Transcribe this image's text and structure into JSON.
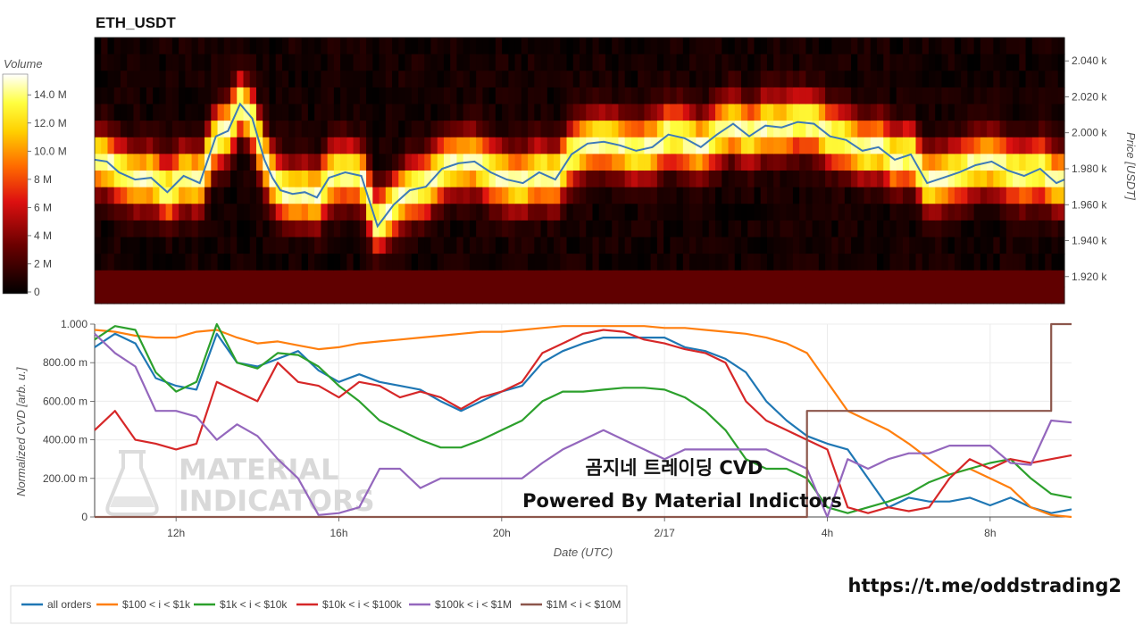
{
  "symbol": "ETH_USDT",
  "overlay_line1": "곰지네 트레이딩 CVD",
  "overlay_line2": "Powered By Material Indictors",
  "url": "https://t.me/oddstrading2",
  "watermark_line1": "MATERIAL",
  "watermark_line2": "INDICATORS",
  "colors": {
    "heat_low": "#000000",
    "heat_mid": "#cc0000",
    "heat_high": "#ffff40",
    "heat_max": "#ffffff",
    "price_line": "#3d7ab8"
  },
  "chart_data": [
    {
      "type": "heatmap",
      "title": "ETH_USDT",
      "colorbar": {
        "title": "Volume",
        "ticks": [
          "0",
          "2 M",
          "4 M",
          "6 M",
          "8 M",
          "10.0 M",
          "12.0 M",
          "14.0 M"
        ],
        "range": [
          0,
          15.6
        ]
      },
      "ylabel": "Price [USDT]",
      "yticks": [
        "1.920 k",
        "1.940 k",
        "1.960 k",
        "1.980 k",
        "2.000 k",
        "2.020 k",
        "2.040 k"
      ],
      "ylim": [
        1905,
        2053
      ],
      "xlim": [
        0,
        24
      ],
      "price_series": {
        "x": [
          0,
          0.3,
          0.6,
          1,
          1.4,
          1.8,
          2.2,
          2.6,
          3,
          3.3,
          3.6,
          3.9,
          4.2,
          4.4,
          4.6,
          4.9,
          5.2,
          5.5,
          5.8,
          6.2,
          6.6,
          7,
          7.4,
          7.8,
          8.2,
          8.6,
          9,
          9.4,
          9.8,
          10.2,
          10.6,
          11,
          11.4,
          11.8,
          12.2,
          12.6,
          13,
          13.4,
          13.8,
          14.2,
          14.6,
          15,
          15.4,
          15.8,
          16.2,
          16.6,
          17,
          17.4,
          17.8,
          18.2,
          18.6,
          19,
          19.4,
          19.8,
          20.2,
          20.6,
          21,
          21.4,
          21.8,
          22.2,
          22.6,
          23,
          23.4,
          23.8,
          24
        ],
        "y": [
          1985,
          1984,
          1978,
          1974,
          1975,
          1967,
          1976,
          1972,
          1998,
          2001,
          2016,
          2008,
          1985,
          1975,
          1968,
          1966,
          1967,
          1964,
          1975,
          1978,
          1976,
          1948,
          1960,
          1968,
          1970,
          1980,
          1983,
          1984,
          1978,
          1974,
          1972,
          1978,
          1974,
          1988,
          1994,
          1995,
          1993,
          1990,
          1992,
          1999,
          1997,
          1992,
          1999,
          2005,
          1998,
          2004,
          2003,
          2006,
          2005,
          1998,
          1996,
          1990,
          1992,
          1985,
          1988,
          1972,
          1975,
          1978,
          1982,
          1984,
          1979,
          1976,
          1980,
          1972,
          1974
        ]
      }
    },
    {
      "type": "line",
      "xlabel": "Date (UTC)",
      "ylabel": "Normalized CVD [arb. u.]",
      "xticks": [
        "12h",
        "16h",
        "20h",
        "2/17",
        "4h",
        "8h"
      ],
      "yticks": [
        "0",
        "200.00 m",
        "400.00 m",
        "600.00 m",
        "800.00 m",
        "1.000"
      ],
      "ylim": [
        0,
        1
      ],
      "xlim": [
        0,
        24
      ],
      "x": [
        0,
        0.5,
        1,
        1.5,
        2,
        2.5,
        3,
        3.5,
        4,
        4.5,
        5,
        5.5,
        6,
        6.5,
        7,
        7.5,
        8,
        8.5,
        9,
        9.5,
        10,
        10.5,
        11,
        11.5,
        12,
        12.5,
        13,
        13.5,
        14,
        14.5,
        15,
        15.5,
        16,
        16.5,
        17,
        17.5,
        18,
        18.5,
        19,
        19.5,
        20,
        20.5,
        21,
        21.5,
        22,
        22.5,
        23,
        23.5,
        24
      ],
      "series": [
        {
          "name": "all orders",
          "color": "#1f77b4",
          "values": [
            0.88,
            0.95,
            0.9,
            0.72,
            0.68,
            0.66,
            0.95,
            0.8,
            0.78,
            0.82,
            0.86,
            0.76,
            0.7,
            0.74,
            0.7,
            0.68,
            0.66,
            0.6,
            0.55,
            0.6,
            0.65,
            0.68,
            0.8,
            0.86,
            0.9,
            0.93,
            0.93,
            0.93,
            0.93,
            0.88,
            0.86,
            0.82,
            0.75,
            0.6,
            0.5,
            0.42,
            0.38,
            0.35,
            0.2,
            0.05,
            0.1,
            0.08,
            0.08,
            0.1,
            0.06,
            0.1,
            0.05,
            0.02,
            0.04
          ]
        },
        {
          "name": "$100 < i < $1k",
          "color": "#ff7f0e",
          "values": [
            0.97,
            0.96,
            0.94,
            0.93,
            0.93,
            0.96,
            0.97,
            0.93,
            0.9,
            0.91,
            0.89,
            0.87,
            0.88,
            0.9,
            0.91,
            0.92,
            0.93,
            0.94,
            0.95,
            0.96,
            0.96,
            0.97,
            0.98,
            0.99,
            0.99,
            0.99,
            0.99,
            0.99,
            0.98,
            0.98,
            0.97,
            0.96,
            0.95,
            0.93,
            0.9,
            0.85,
            0.7,
            0.55,
            0.5,
            0.45,
            0.38,
            0.3,
            0.22,
            0.25,
            0.2,
            0.15,
            0.05,
            0.01,
            0.0
          ]
        },
        {
          "name": "$1k < i < $10k",
          "color": "#2ca02c",
          "values": [
            0.92,
            0.99,
            0.97,
            0.75,
            0.65,
            0.7,
            1.0,
            0.8,
            0.77,
            0.85,
            0.84,
            0.78,
            0.68,
            0.6,
            0.5,
            0.45,
            0.4,
            0.36,
            0.36,
            0.4,
            0.45,
            0.5,
            0.6,
            0.65,
            0.65,
            0.66,
            0.67,
            0.67,
            0.66,
            0.62,
            0.55,
            0.45,
            0.3,
            0.25,
            0.25,
            0.2,
            0.05,
            0.02,
            0.05,
            0.08,
            0.12,
            0.18,
            0.22,
            0.25,
            0.28,
            0.3,
            0.2,
            0.12,
            0.1
          ]
        },
        {
          "name": "$10k < i < $100k",
          "color": "#d62728",
          "values": [
            0.45,
            0.55,
            0.4,
            0.38,
            0.35,
            0.38,
            0.7,
            0.65,
            0.6,
            0.8,
            0.7,
            0.68,
            0.62,
            0.7,
            0.68,
            0.62,
            0.65,
            0.62,
            0.56,
            0.62,
            0.65,
            0.7,
            0.85,
            0.9,
            0.95,
            0.97,
            0.96,
            0.92,
            0.9,
            0.87,
            0.85,
            0.8,
            0.6,
            0.5,
            0.45,
            0.4,
            0.35,
            0.05,
            0.02,
            0.05,
            0.03,
            0.05,
            0.2,
            0.3,
            0.25,
            0.3,
            0.28,
            0.3,
            0.32
          ]
        },
        {
          "name": "$100k < i < $1M",
          "color": "#9467bd",
          "values": [
            0.95,
            0.85,
            0.78,
            0.55,
            0.55,
            0.52,
            0.4,
            0.48,
            0.42,
            0.3,
            0.2,
            0.01,
            0.02,
            0.05,
            0.25,
            0.25,
            0.15,
            0.2,
            0.2,
            0.2,
            0.2,
            0.2,
            0.28,
            0.35,
            0.4,
            0.45,
            0.4,
            0.35,
            0.3,
            0.35,
            0.35,
            0.35,
            0.35,
            0.35,
            0.3,
            0.25,
            0.0,
            0.3,
            0.25,
            0.3,
            0.33,
            0.33,
            0.37,
            0.37,
            0.37,
            0.28,
            0.27,
            0.5,
            0.49
          ]
        },
        {
          "name": "$1M < i < $10M",
          "color": "#8c564b",
          "values": [
            0,
            0,
            0,
            0,
            0,
            0,
            0,
            0,
            0,
            0,
            0,
            0,
            0,
            0,
            0,
            0,
            0,
            0,
            0,
            0,
            0,
            0,
            0,
            0,
            0,
            0,
            0,
            0,
            0,
            0,
            0,
            0,
            0,
            0,
            0,
            0.55,
            0.55,
            0.55,
            0.55,
            0.55,
            0.55,
            0.55,
            0.55,
            0.55,
            0.55,
            0.55,
            0.55,
            1.0,
            1.0
          ]
        }
      ]
    }
  ]
}
